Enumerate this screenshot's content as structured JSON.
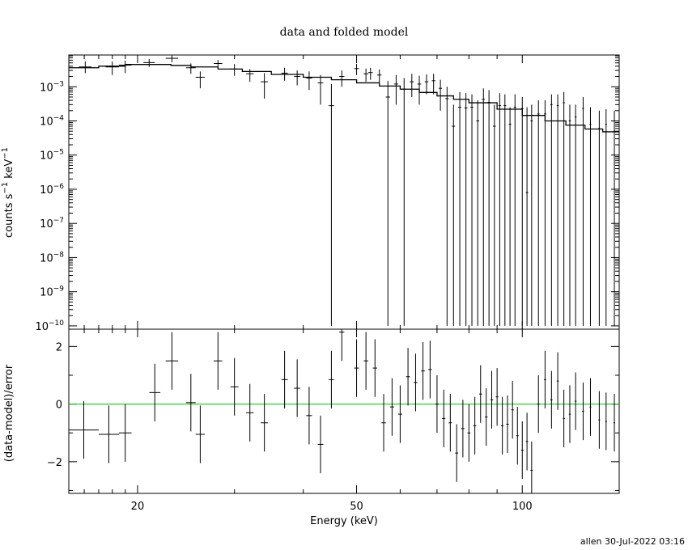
{
  "footer": {
    "stamp": "allen 30-Jul-2022 03:16"
  },
  "chart_data": [
    {
      "type": "scatter",
      "title": "data and folded model",
      "xlabel": "",
      "ylabel": "counts s^-1 keV^-1",
      "ylabel_parts": {
        "a": "counts s",
        "b": "−1",
        "c": " keV",
        "d": "−1"
      },
      "x_scale": "log",
      "y_scale": "log",
      "xlim": [
        15,
        150
      ],
      "ylim": [
        8e-11,
        0.0085
      ],
      "yticks": [
        {
          "exp": -3,
          "label": "−3"
        },
        {
          "exp": -4,
          "label": "−4"
        },
        {
          "exp": -5,
          "label": "−5"
        },
        {
          "exp": -6,
          "label": "−6"
        },
        {
          "exp": -7,
          "label": "−7"
        },
        {
          "exp": -8,
          "label": "−8"
        },
        {
          "exp": -9,
          "label": "−9"
        },
        {
          "exp": -10,
          "label": "−10"
        }
      ],
      "series": [
        {
          "kind": "data",
          "points": [
            [
              15.65,
              16.5,
              0.0038,
              0.0025,
              0.0055
            ],
            [
              17.5,
              18.5,
              0.0038,
              0.0022,
              0.0055
            ],
            [
              18.5,
              19.5,
              0.0043,
              0.0025,
              0.0058
            ],
            [
              20.5,
              21.5,
              0.0051,
              0.0038,
              0.0065
            ],
            [
              22.5,
              23.7,
              0.0068,
              0.0052,
              0.0082
            ],
            [
              24.5,
              25.5,
              0.0036,
              0.0024,
              0.0048
            ],
            [
              25.5,
              26.5,
              0.0019,
              0.0009,
              0.0028
            ],
            [
              27.5,
              28.5,
              0.0048,
              0.0035,
              0.0061
            ],
            [
              29.5,
              30.5,
              0.0033,
              0.0021,
              0.0046
            ],
            [
              31.5,
              32.5,
              0.0024,
              0.0014,
              0.0033
            ],
            [
              33.5,
              34.5,
              0.0014,
              0.00045,
              0.0025
            ],
            [
              36.5,
              37.5,
              0.0025,
              0.0015,
              0.0036
            ],
            [
              38.5,
              39.5,
              0.002,
              0.0011,
              0.003
            ],
            [
              40.5,
              41.5,
              0.0018,
              0.0008,
              0.0028
            ],
            [
              42.5,
              43.5,
              0.0013,
              0.0003,
              0.0022
            ],
            [
              44.5,
              45.5,
              0.00028,
              1e-10,
              0.0012
            ],
            [
              46.5,
              47.5,
              0.002,
              0.001,
              0.003
            ],
            [
              49.5,
              50.5,
              0.0034,
              0.0022,
              0.0047
            ],
            [
              51.5,
              52.5,
              0.0024,
              0.0014,
              0.0034
            ],
            [
              52.5,
              53.5,
              0.0026,
              0.0016,
              0.0036
            ],
            [
              54.5,
              55.5,
              0.0022,
              0.0013,
              0.0032
            ],
            [
              56.5,
              57.5,
              0.0005,
              1e-10,
              0.0015
            ],
            [
              58.5,
              59.5,
              0.0012,
              0.0003,
              0.0022
            ],
            [
              60.5,
              61.5,
              0.00085,
              1e-10,
              0.0018
            ],
            [
              62.5,
              63.5,
              0.0014,
              0.0005,
              0.0024
            ],
            [
              64.5,
              65.5,
              0.0012,
              0.0003,
              0.0021
            ],
            [
              66.5,
              67.5,
              0.0014,
              0.0006,
              0.0023
            ],
            [
              68.5,
              69.5,
              0.0015,
              0.0006,
              0.0024
            ],
            [
              70.5,
              71.5,
              0.0009,
              0.0002,
              0.0016
            ],
            [
              72.5,
              73.5,
              0.00045,
              1e-10,
              0.001
            ],
            [
              74.5,
              75.5,
              7e-05,
              1e-10,
              0.0003
            ],
            [
              76.5,
              77.5,
              0.00025,
              1e-10,
              0.0007
            ],
            [
              78.5,
              79.5,
              0.00024,
              1e-10,
              0.00065
            ],
            [
              80.5,
              81.5,
              0.00025,
              1e-10,
              0.0006
            ],
            [
              82.5,
              83.5,
              0.0001,
              1e-10,
              0.0004
            ],
            [
              84.5,
              85.5,
              0.00043,
              1e-10,
              0.0009
            ],
            [
              86.5,
              87.5,
              0.00035,
              1e-10,
              0.0008
            ],
            [
              88.5,
              89.5,
              7e-05,
              1e-10,
              0.0003
            ],
            [
              90.5,
              91.5,
              0.00028,
              1e-10,
              0.00065
            ],
            [
              92.5,
              93.5,
              0.00028,
              1e-10,
              0.0006
            ],
            [
              94.5,
              95.5,
              8e-05,
              1e-10,
              0.00025
            ],
            [
              96.5,
              97.5,
              0.00025,
              1e-10,
              0.0006
            ],
            [
              99.5,
              100.5,
              0.00023,
              1e-10,
              0.0005
            ],
            [
              101.5,
              102.5,
              8e-07,
              1e-10,
              0.00025
            ],
            [
              103.5,
              104.5,
              0.0001,
              1e-10,
              0.0003
            ],
            [
              106.5,
              107.5,
              0.00016,
              1e-10,
              0.0004
            ],
            [
              109.5,
              110.5,
              0.00016,
              1e-10,
              0.0004
            ],
            [
              112.5,
              113.5,
              0.0003,
              1e-10,
              0.0006
            ],
            [
              115.5,
              116.5,
              0.00028,
              1e-10,
              0.0006
            ],
            [
              118.5,
              119.5,
              0.00034,
              1e-10,
              0.0007
            ],
            [
              121.5,
              122.5,
              0.0001,
              1e-10,
              0.0003
            ],
            [
              124.5,
              125.5,
              0.00013,
              1e-10,
              0.0003
            ],
            [
              128.5,
              129.5,
              0.00023,
              1e-10,
              0.0005
            ],
            [
              132.5,
              133.5,
              8e-05,
              1e-10,
              0.00025
            ],
            [
              137.5,
              138.5,
              6e-05,
              1e-10,
              0.0002
            ],
            [
              141.5,
              142.5,
              8e-05,
              1e-10,
              0.00022
            ],
            [
              146.5,
              147.5,
              5e-05,
              1e-10,
              0.0002
            ]
          ]
        },
        {
          "kind": "model",
          "x": [
            15.0,
            17.0,
            19.0,
            21.0,
            23.0,
            25.0,
            28.0,
            31.0,
            35.0,
            40.0,
            45.0,
            50.0,
            55.0,
            60.0,
            65.0,
            70.0,
            75.0,
            80.0,
            90.0,
            100.0,
            110.0,
            120.0,
            130.0,
            140.0,
            150.0
          ],
          "y": [
            0.0036,
            0.004,
            0.0045,
            0.0045,
            0.0042,
            0.0038,
            0.0033,
            0.0028,
            0.0023,
            0.0019,
            0.0016,
            0.0013,
            0.00105,
            0.00085,
            0.00068,
            0.00054,
            0.00043,
            0.00034,
            0.00022,
            0.000145,
            0.0001,
            7.5e-05,
            5.8e-05,
            4.8e-05,
            4.5e-05
          ]
        }
      ]
    },
    {
      "type": "scatter",
      "title": "",
      "xlabel": "Energy (keV)",
      "ylabel": "(data-model)/error",
      "x_scale": "log",
      "xlim": [
        15,
        150
      ],
      "ylim": [
        -3.1,
        2.6
      ],
      "xticks": [
        20,
        50,
        100
      ],
      "xtick_labels": [
        "20",
        "50",
        "100"
      ],
      "yticks": [
        2,
        0,
        -2
      ],
      "ytick_labels": [
        "2",
        "0",
        "−2"
      ],
      "reference_line": {
        "y": 0,
        "color": "#00c000"
      },
      "series": [
        {
          "kind": "residuals",
          "points": [
            [
              15.0,
              17.0,
              -0.9,
              -1.9,
              0.1
            ],
            [
              17.0,
              18.5,
              -1.05,
              -2.05,
              -0.05
            ],
            [
              18.5,
              19.5,
              -1.0,
              -2.0,
              0.0
            ],
            [
              21.0,
              22.0,
              0.4,
              -0.6,
              1.4
            ],
            [
              22.5,
              23.7,
              1.5,
              0.5,
              2.5
            ],
            [
              24.5,
              25.5,
              0.05,
              -0.95,
              1.05
            ],
            [
              25.5,
              26.5,
              -1.05,
              -2.05,
              -0.05
            ],
            [
              27.5,
              28.5,
              1.5,
              0.5,
              2.5
            ],
            [
              29.5,
              30.5,
              0.6,
              -0.4,
              1.6
            ],
            [
              31.5,
              32.5,
              -0.3,
              -1.3,
              0.7
            ],
            [
              33.5,
              34.5,
              -0.65,
              -1.65,
              0.35
            ],
            [
              36.5,
              37.5,
              0.85,
              -0.15,
              1.85
            ],
            [
              38.5,
              39.5,
              0.55,
              -0.45,
              1.55
            ],
            [
              40.5,
              41.5,
              -0.4,
              -1.4,
              0.6
            ],
            [
              42.5,
              43.5,
              -1.4,
              -2.4,
              -0.4
            ],
            [
              44.5,
              45.5,
              0.85,
              -0.15,
              1.85
            ],
            [
              46.5,
              47.5,
              2.5,
              1.5,
              3.5
            ],
            [
              49.5,
              50.5,
              1.25,
              0.25,
              2.25
            ],
            [
              51.5,
              52.5,
              1.5,
              0.5,
              2.5
            ],
            [
              53.5,
              54.5,
              1.25,
              0.25,
              2.25
            ],
            [
              55.5,
              56.5,
              -0.65,
              -1.65,
              0.35
            ],
            [
              57.5,
              58.5,
              -0.1,
              -1.1,
              0.9
            ],
            [
              59.5,
              60.5,
              -0.35,
              -1.35,
              0.65
            ],
            [
              61.5,
              62.5,
              0.95,
              -0.05,
              1.95
            ],
            [
              63.5,
              64.5,
              0.75,
              -0.25,
              1.75
            ],
            [
              65.5,
              66.5,
              1.15,
              0.15,
              2.15
            ],
            [
              67.5,
              68.5,
              1.2,
              0.2,
              2.2
            ],
            [
              69.5,
              70.5,
              0.0,
              -1.0,
              1.0
            ],
            [
              71.5,
              72.5,
              -0.5,
              -1.5,
              0.5
            ],
            [
              73.5,
              74.5,
              -0.65,
              -1.65,
              0.35
            ],
            [
              75.5,
              76.5,
              -1.7,
              -2.7,
              -0.7
            ],
            [
              77.5,
              78.5,
              -0.85,
              -1.85,
              0.15
            ],
            [
              79.5,
              80.5,
              -1.0,
              -2.0,
              0.0
            ],
            [
              81.5,
              82.5,
              -0.75,
              -1.75,
              0.25
            ],
            [
              83.5,
              84.5,
              0.35,
              -0.65,
              1.35
            ],
            [
              85.5,
              86.5,
              -0.45,
              -1.45,
              0.55
            ],
            [
              87.5,
              88.5,
              0.15,
              -0.85,
              1.15
            ],
            [
              89.5,
              90.5,
              0.25,
              -0.75,
              1.25
            ],
            [
              91.5,
              92.5,
              -0.75,
              -1.75,
              0.25
            ],
            [
              93.5,
              94.5,
              -0.7,
              -1.7,
              0.3
            ],
            [
              95.5,
              96.5,
              -0.2,
              -1.2,
              0.8
            ],
            [
              97.5,
              98.5,
              -1.1,
              -2.1,
              -0.1
            ],
            [
              99.5,
              100.5,
              -1.6,
              -2.6,
              -0.6
            ],
            [
              101.5,
              102.5,
              -1.3,
              -2.3,
              -0.3
            ],
            [
              103.5,
              104.5,
              -2.3,
              -3.3,
              -1.3
            ],
            [
              106.5,
              107.5,
              0.0,
              -1.0,
              1.0
            ],
            [
              109.5,
              110.5,
              0.85,
              -0.15,
              1.85
            ],
            [
              112.5,
              113.5,
              0.15,
              -0.85,
              1.15
            ],
            [
              115.5,
              116.5,
              0.8,
              -0.2,
              1.8
            ],
            [
              118.5,
              119.5,
              -0.5,
              -1.5,
              0.5
            ],
            [
              121.5,
              122.5,
              -0.35,
              -1.35,
              0.65
            ],
            [
              124.5,
              125.5,
              0.1,
              -0.9,
              1.1
            ],
            [
              128.5,
              129.5,
              -0.25,
              -1.25,
              0.75
            ],
            [
              132.5,
              133.5,
              -0.1,
              -1.1,
              0.9
            ],
            [
              137.5,
              138.5,
              -0.55,
              -1.55,
              0.45
            ],
            [
              141.5,
              142.5,
              -0.6,
              -1.6,
              0.4
            ],
            [
              146.5,
              147.5,
              -0.65,
              -1.65,
              0.35
            ]
          ]
        }
      ]
    }
  ]
}
